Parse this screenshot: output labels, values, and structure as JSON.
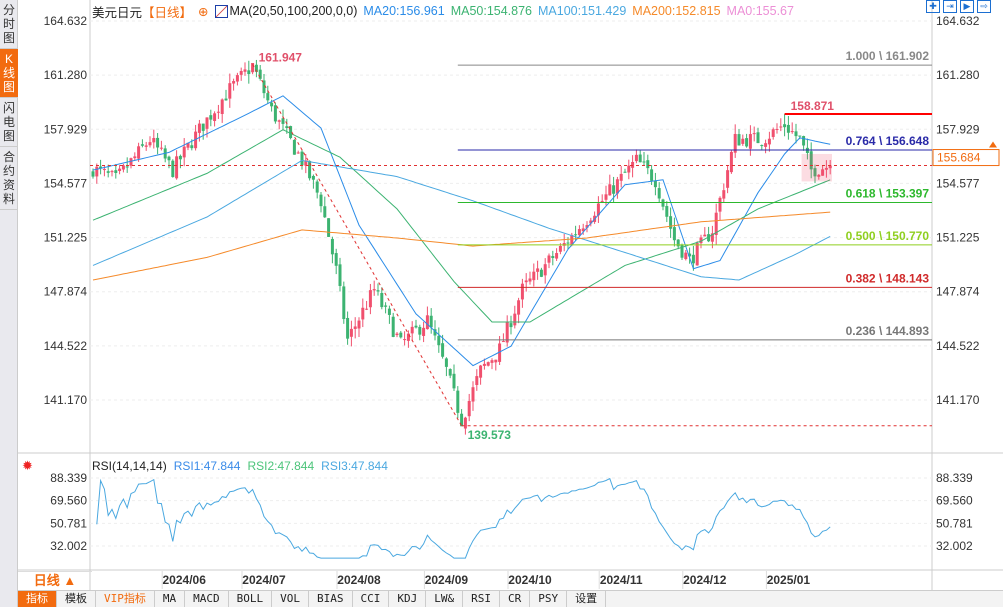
{
  "sidebar": {
    "tabs": [
      {
        "label": "分时图"
      },
      {
        "label": "K线图",
        "active": true
      },
      {
        "label": "闪电图"
      },
      {
        "label": "合约资料"
      }
    ]
  },
  "header": {
    "symbol": "美元日元",
    "period": "【日线】",
    "ma_label": "MA(20,50,100,200,0,0)",
    "ma20": "MA20:156.961",
    "ma50": "MA50:154.876",
    "ma100": "MA100:151.429",
    "ma200": "MA200:152.815",
    "ma0": "MA0:155.67"
  },
  "tools": [
    "crosshair-icon",
    "zoom-in-icon",
    "step-forward-icon",
    "jump-end-icon"
  ],
  "colors": {
    "up": "#f0506e",
    "down": "#3cb371",
    "ma20": "#2b8ce8",
    "ma50": "#3cb371",
    "ma100": "#4aa8e0",
    "ma200": "#f58a2a",
    "accent": "#f26b0f"
  },
  "chart_data": {
    "type": "candlestick",
    "yaxis_ticks": [
      "164.632",
      "161.280",
      "157.929",
      "154.577",
      "151.225",
      "147.874",
      "144.522",
      "141.170"
    ],
    "yaxis_values": [
      164.632,
      161.28,
      157.929,
      154.577,
      151.225,
      147.874,
      144.522,
      141.17
    ],
    "ylim": [
      138.9,
      165.3
    ],
    "candle_count": 195,
    "close_waypoints": [
      [
        0,
        155.5
      ],
      [
        6,
        154.8
      ],
      [
        15,
        157.3
      ],
      [
        21,
        155.4
      ],
      [
        28,
        157.9
      ],
      [
        36,
        160.4
      ],
      [
        42,
        161.9
      ],
      [
        47,
        159.1
      ],
      [
        55,
        156.0
      ],
      [
        60,
        153.5
      ],
      [
        64,
        149.2
      ],
      [
        67,
        144.9
      ],
      [
        74,
        148.0
      ],
      [
        81,
        144.6
      ],
      [
        88,
        146.1
      ],
      [
        93,
        143.0
      ],
      [
        97,
        139.9
      ],
      [
        102,
        143.0
      ],
      [
        107,
        144.3
      ],
      [
        113,
        148.0
      ],
      [
        123,
        150.5
      ],
      [
        134,
        153.5
      ],
      [
        143,
        156.0
      ],
      [
        148,
        154.8
      ],
      [
        153,
        151.1
      ],
      [
        157,
        149.8
      ],
      [
        163,
        151.7
      ],
      [
        169,
        157.3
      ],
      [
        176,
        157.3
      ],
      [
        182,
        158.2
      ],
      [
        186,
        157.3
      ],
      [
        189,
        155.4
      ],
      [
        194,
        155.7
      ]
    ],
    "ma_waypoints": {
      "ma20": [
        [
          0,
          155.4
        ],
        [
          20,
          156.5
        ],
        [
          40,
          158.8
        ],
        [
          50,
          160.0
        ],
        [
          60,
          158.0
        ],
        [
          70,
          152.0
        ],
        [
          85,
          146.5
        ],
        [
          100,
          143.3
        ],
        [
          110,
          144.5
        ],
        [
          125,
          150.5
        ],
        [
          140,
          154.5
        ],
        [
          150,
          154.8
        ],
        [
          158,
          149.3
        ],
        [
          165,
          149.8
        ],
        [
          175,
          154.0
        ],
        [
          182,
          156.4
        ],
        [
          186,
          157.4
        ],
        [
          194,
          157.0
        ]
      ],
      "ma50": [
        [
          0,
          152.3
        ],
        [
          30,
          155.2
        ],
        [
          50,
          157.9
        ],
        [
          65,
          156.2
        ],
        [
          80,
          153.0
        ],
        [
          95,
          148.5
        ],
        [
          105,
          146.0
        ],
        [
          115,
          146.0
        ],
        [
          140,
          149.5
        ],
        [
          160,
          151.0
        ],
        [
          175,
          153.0
        ],
        [
          194,
          154.8
        ]
      ],
      "ma100": [
        [
          0,
          149.5
        ],
        [
          30,
          152.5
        ],
        [
          55,
          156.0
        ],
        [
          80,
          155.0
        ],
        [
          100,
          153.5
        ],
        [
          120,
          151.8
        ],
        [
          140,
          150.3
        ],
        [
          160,
          148.8
        ],
        [
          170,
          148.6
        ],
        [
          185,
          150.2
        ],
        [
          194,
          151.3
        ]
      ],
      "ma200": [
        [
          0,
          148.6
        ],
        [
          30,
          150.0
        ],
        [
          55,
          151.7
        ],
        [
          80,
          151.2
        ],
        [
          100,
          150.7
        ],
        [
          130,
          151.2
        ],
        [
          160,
          152.2
        ],
        [
          194,
          152.8
        ]
      ]
    },
    "x_labels": [
      {
        "label": "2024/06",
        "index": 24
      },
      {
        "label": "2024/07",
        "index": 45
      },
      {
        "label": "2024/08",
        "index": 70
      },
      {
        "label": "2024/09",
        "index": 93
      },
      {
        "label": "2024/10",
        "index": 115
      },
      {
        "label": "2024/11",
        "index": 139
      },
      {
        "label": "2024/12",
        "index": 161
      },
      {
        "label": "2025/01",
        "index": 183
      }
    ],
    "annotations": {
      "high": {
        "label": "161.947",
        "value": 161.947,
        "index": 42
      },
      "low": {
        "label": "139.573",
        "value": 139.573,
        "index": 97
      },
      "recent_high": {
        "label": "158.871",
        "value": 158.871,
        "index": 182
      },
      "last_price": {
        "label": "155.684",
        "value": 155.684
      }
    },
    "fib_start_index": 96,
    "fibonacci": [
      {
        "label": "1.000 \\ 161.902",
        "value": 161.902,
        "color": "#888888"
      },
      {
        "label": "0.764 \\ 156.648",
        "value": 156.648,
        "color": "#2a2aa8"
      },
      {
        "label": "0.618 \\ 153.397",
        "value": 153.397,
        "color": "#2db82d"
      },
      {
        "label": "0.500 \\ 150.770",
        "value": 150.77,
        "color": "#8fcf1f"
      },
      {
        "label": "0.382 \\ 148.143",
        "value": 148.143,
        "color": "#d02a2a"
      },
      {
        "label": "0.236 \\ 144.893",
        "value": 144.893,
        "color": "#777777"
      }
    ]
  },
  "rsi": {
    "title": "RSI(14,14,14)",
    "rsi1": "RSI1:47.844",
    "rsi2": "RSI2:47.844",
    "rsi3": "RSI3:47.844",
    "ticks": [
      "88.339",
      "69.560",
      "50.781",
      "32.002"
    ],
    "tick_values": [
      88.339,
      69.56,
      50.781,
      32.002
    ]
  },
  "bottom": {
    "period": "日线 ▲",
    "tabs": [
      "指标",
      "模板",
      "VIP指标",
      "MA",
      "MACD",
      "BOLL",
      "VOL",
      "BIAS",
      "CCI",
      "KDJ",
      "LW&",
      "RSI",
      "CR",
      "PSY",
      "设置"
    ]
  }
}
